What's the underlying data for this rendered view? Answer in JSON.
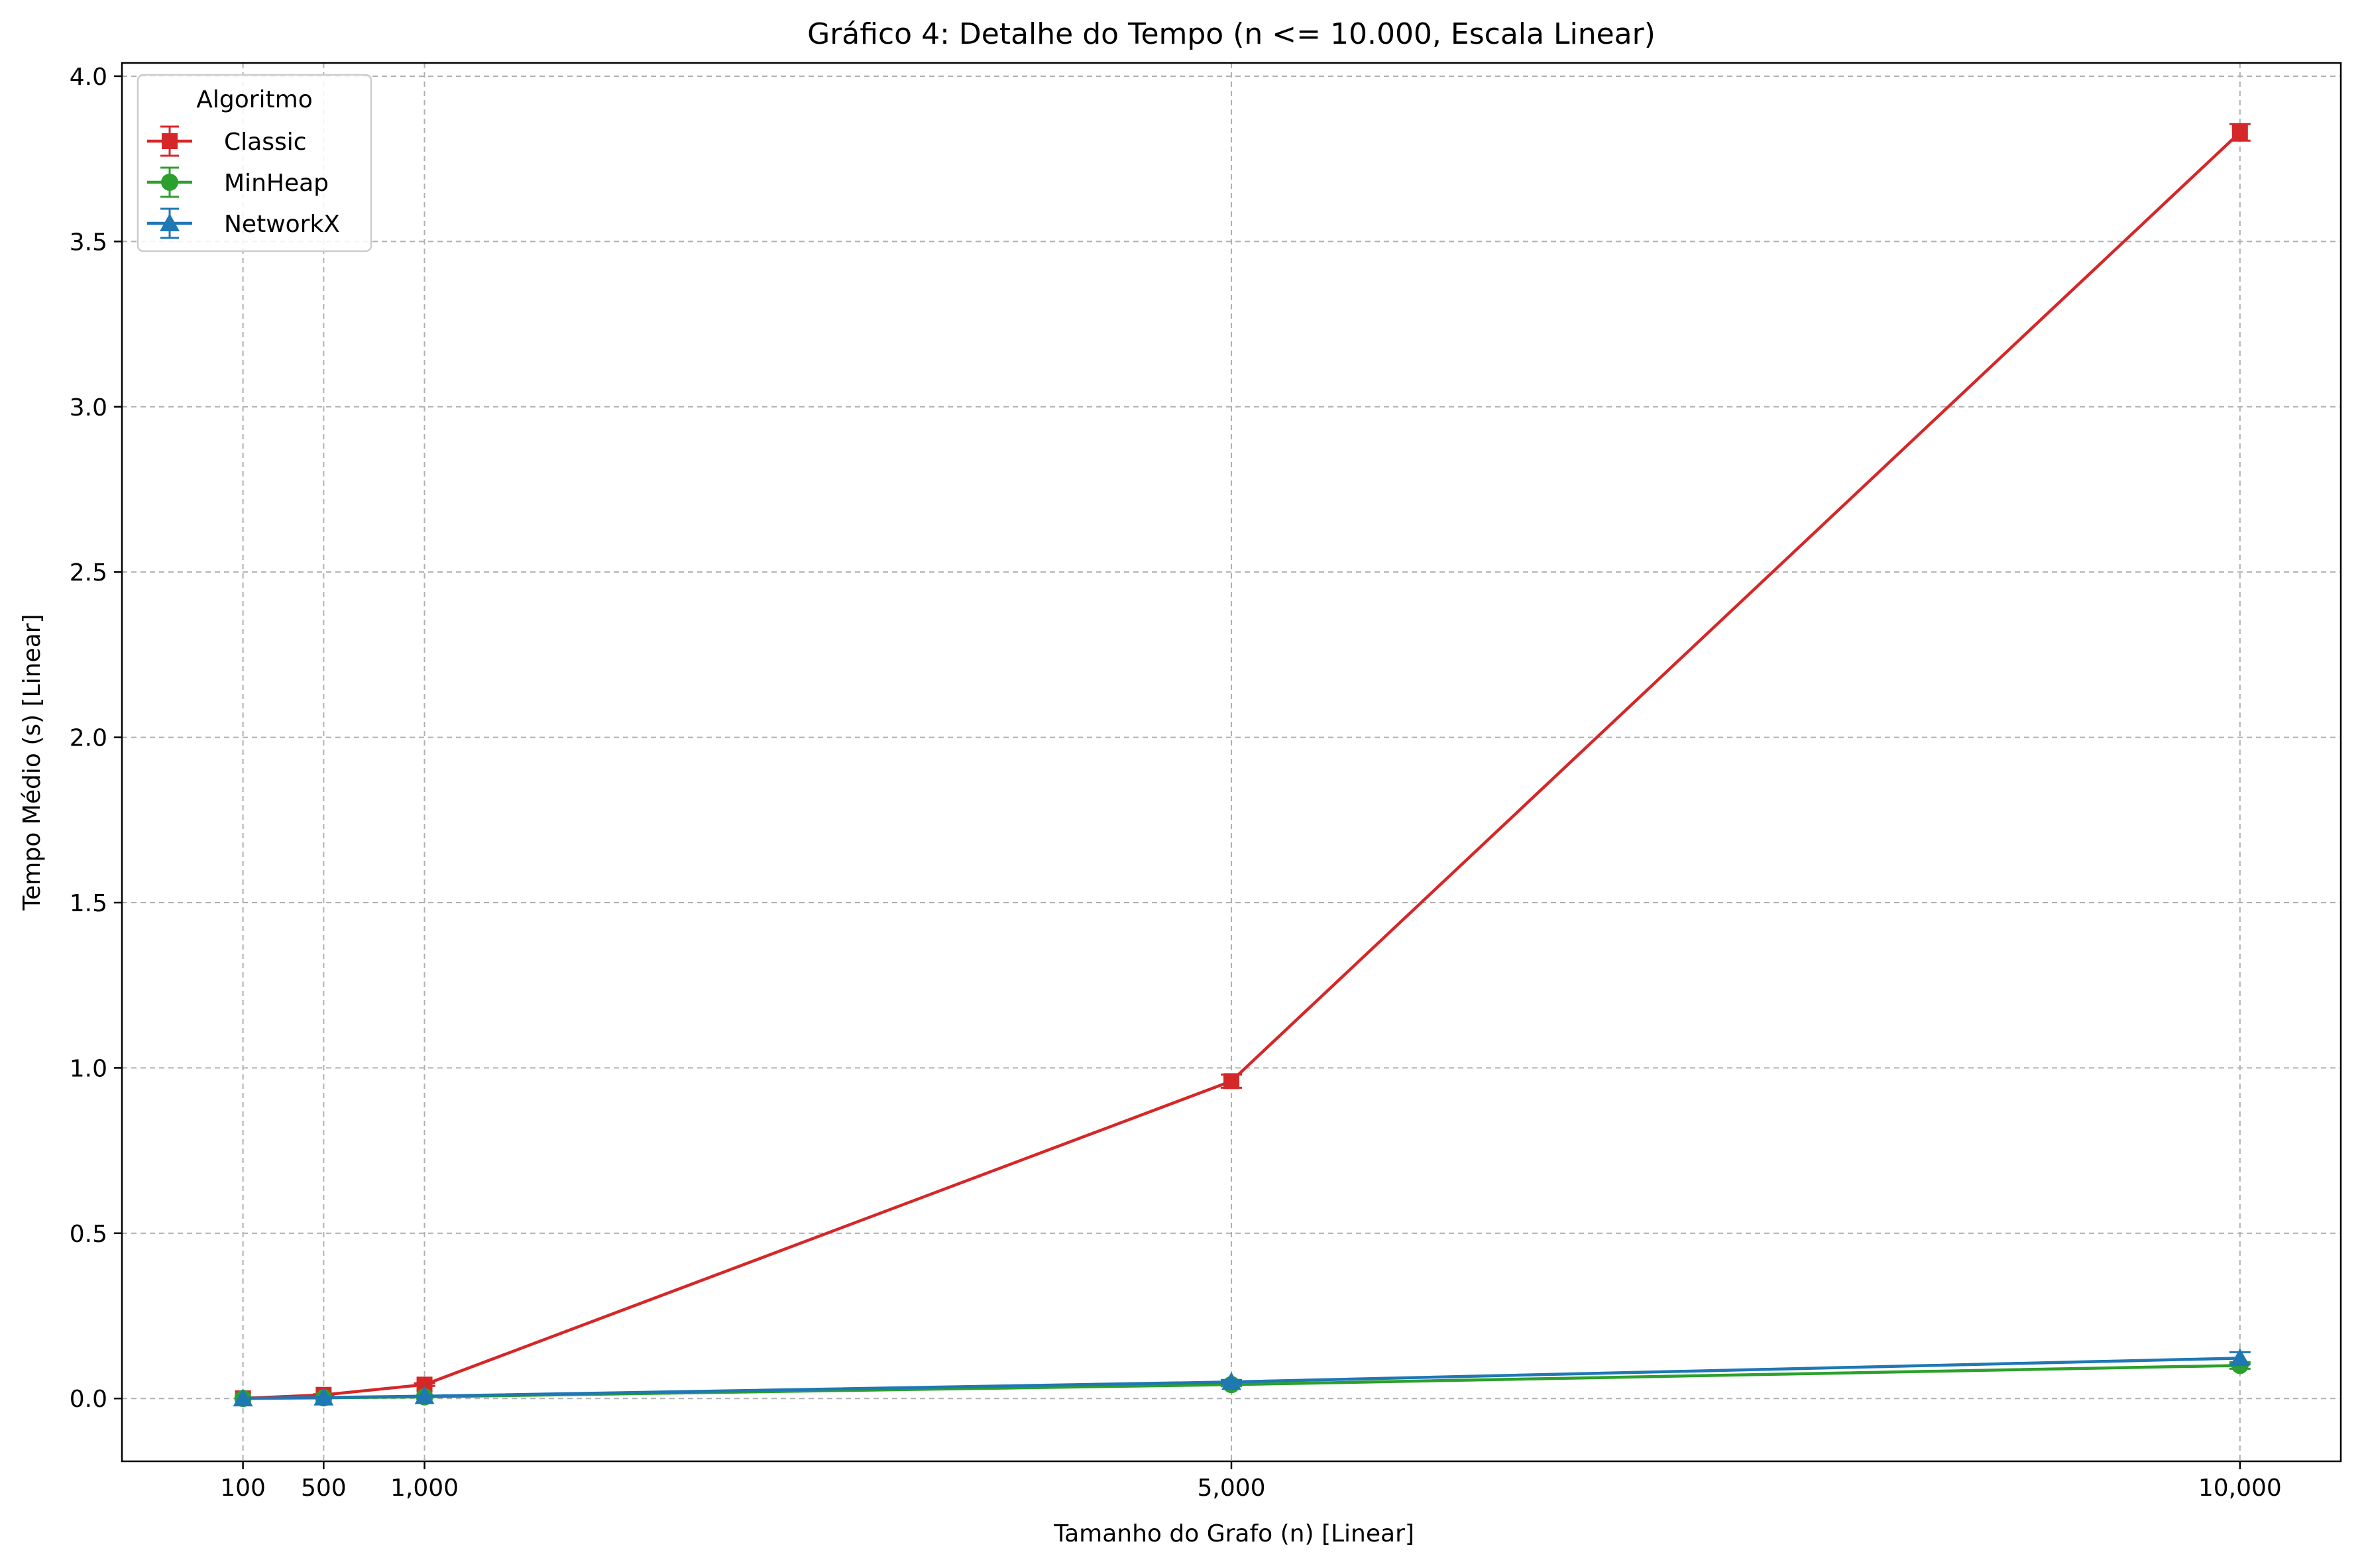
{
  "chart_data": {
    "type": "line",
    "title": "Gráfico 4: Detalhe do Tempo (n <= 10.000, Escala Linear)",
    "xlabel": "Tamanho do Grafo (n) [Linear]",
    "ylabel": "Tempo Médio (s) [Linear]",
    "xlim": [
      -500,
      10500
    ],
    "ylim": [
      -0.19,
      4.04
    ],
    "x": [
      100,
      500,
      1000,
      5000,
      10000
    ],
    "xticks": [
      100,
      500,
      1000,
      5000,
      10000
    ],
    "xtick_labels": [
      "100",
      "500",
      "1,000",
      "5,000",
      "10,000"
    ],
    "yticks": [
      0.0,
      0.5,
      1.0,
      1.5,
      2.0,
      2.5,
      3.0,
      3.5,
      4.0
    ],
    "ytick_labels": [
      "0.0",
      "0.5",
      "1.0",
      "1.5",
      "2.0",
      "2.5",
      "3.0",
      "3.5",
      "4.0"
    ],
    "grid": true,
    "legend": {
      "title": "Algoritmo",
      "placement": "top-left"
    },
    "series": [
      {
        "name": "Classic",
        "color": "#d62728",
        "marker": "square",
        "values": [
          0.0005,
          0.011,
          0.042,
          0.96,
          3.83
        ],
        "errors": [
          0.0,
          0.002,
          0.004,
          0.02,
          0.025
        ]
      },
      {
        "name": "MinHeap",
        "color": "#2ca02c",
        "marker": "circle",
        "values": [
          0.0002,
          0.002,
          0.005,
          0.042,
          0.1
        ],
        "errors": [
          0.0,
          0.0005,
          0.001,
          0.005,
          0.01
        ]
      },
      {
        "name": "NetworkX",
        "color": "#1f77b4",
        "marker": "triangle",
        "values": [
          0.0003,
          0.003,
          0.007,
          0.05,
          0.122
        ],
        "errors": [
          0.0,
          0.0005,
          0.001,
          0.006,
          0.018
        ]
      }
    ]
  }
}
